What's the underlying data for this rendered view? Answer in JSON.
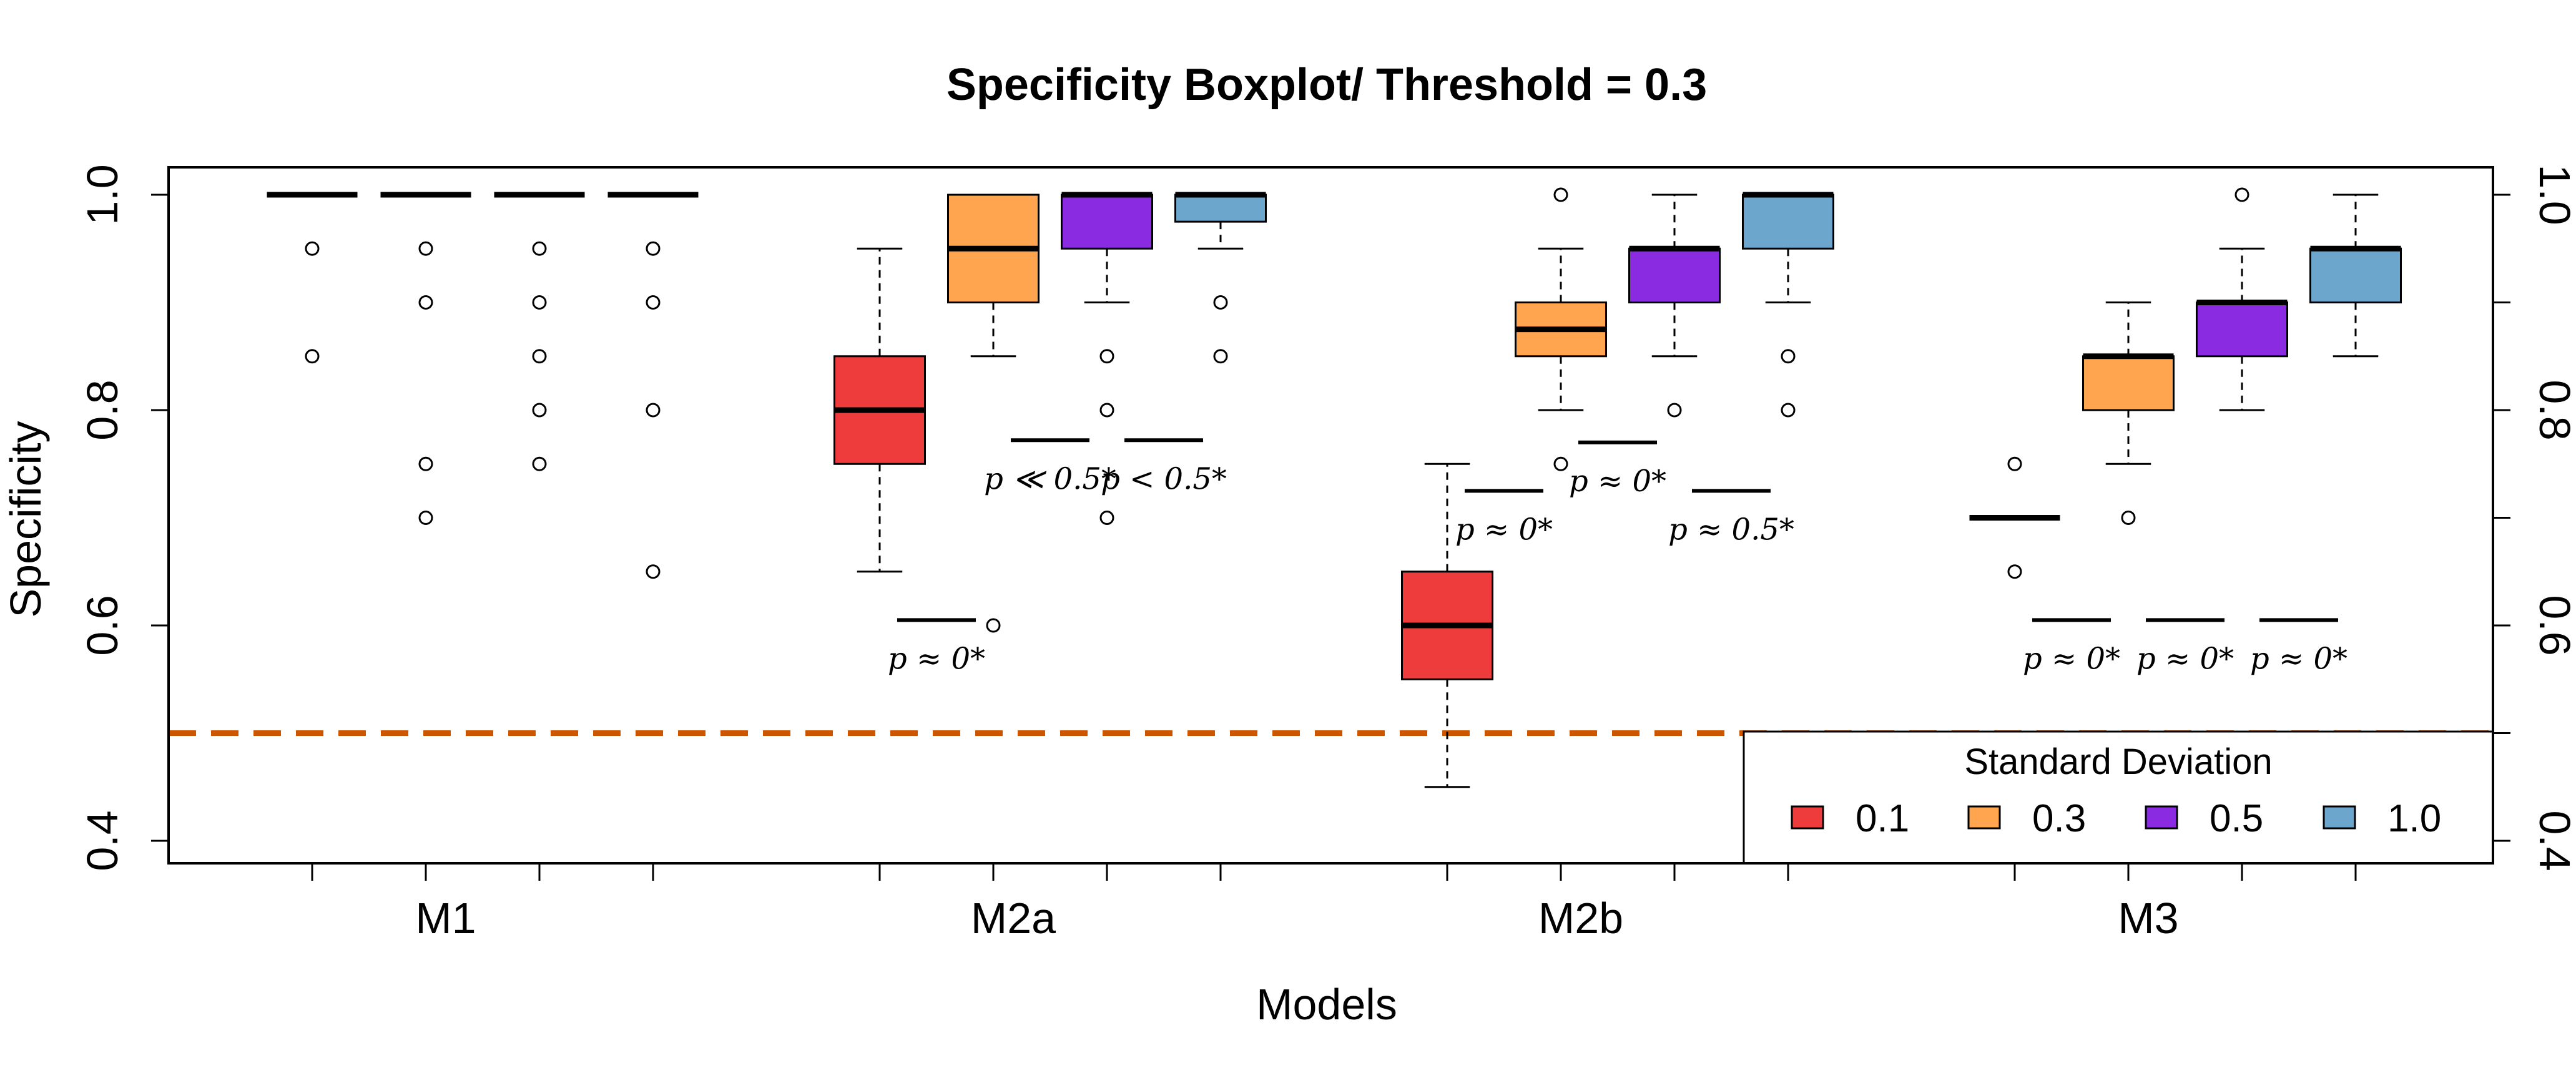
{
  "chart_data": {
    "type": "boxplot",
    "title": "Specificity Boxplot/ Threshold =  0.3",
    "xlabel": "Models",
    "ylabel": "Specificity",
    "ylim": [
      0.38,
      1.025
    ],
    "yticks": [
      0.4,
      0.6,
      0.8,
      1.0
    ],
    "ytick_labels": [
      "0.4",
      "0.6",
      "0.8",
      "1.0"
    ],
    "categories": [
      "M1",
      "M2a",
      "M2b",
      "M3"
    ],
    "series_names": [
      "0.1",
      "0.3",
      "0.5",
      "1.0"
    ],
    "series_colors": [
      "#ee3b3b",
      "#ffa54f",
      "#8a2be2",
      "#6ca6cd"
    ],
    "reference_line": {
      "y": 0.5,
      "color": "#cc5500"
    },
    "boxes": [
      {
        "model": "M1",
        "series": "0.1",
        "q1": 1.0,
        "median": 1.0,
        "q3": 1.0,
        "wlo": 1.0,
        "whi": 1.0,
        "outliers": [
          0.95,
          0.85
        ]
      },
      {
        "model": "M1",
        "series": "0.3",
        "q1": 1.0,
        "median": 1.0,
        "q3": 1.0,
        "wlo": 1.0,
        "whi": 1.0,
        "outliers": [
          0.95,
          0.9,
          0.75,
          0.7
        ]
      },
      {
        "model": "M1",
        "series": "0.5",
        "q1": 1.0,
        "median": 1.0,
        "q3": 1.0,
        "wlo": 1.0,
        "whi": 1.0,
        "outliers": [
          0.95,
          0.9,
          0.85,
          0.8,
          0.75
        ]
      },
      {
        "model": "M1",
        "series": "1.0",
        "q1": 1.0,
        "median": 1.0,
        "q3": 1.0,
        "wlo": 1.0,
        "whi": 1.0,
        "outliers": [
          0.95,
          0.9,
          0.8,
          0.65
        ]
      },
      {
        "model": "M2a",
        "series": "0.1",
        "q1": 0.75,
        "median": 0.8,
        "q3": 0.85,
        "wlo": 0.65,
        "whi": 0.95,
        "outliers": []
      },
      {
        "model": "M2a",
        "series": "0.3",
        "q1": 0.9,
        "median": 0.95,
        "q3": 1.0,
        "wlo": 0.85,
        "whi": 1.0,
        "outliers": [
          0.6
        ]
      },
      {
        "model": "M2a",
        "series": "0.5",
        "q1": 0.95,
        "median": 1.0,
        "q3": 1.0,
        "wlo": 0.9,
        "whi": 1.0,
        "outliers": [
          0.85,
          0.8,
          0.7
        ]
      },
      {
        "model": "M2a",
        "series": "1.0",
        "q1": 0.975,
        "median": 1.0,
        "q3": 1.0,
        "wlo": 0.95,
        "whi": 1.0,
        "outliers": [
          0.9,
          0.85
        ]
      },
      {
        "model": "M2b",
        "series": "0.1",
        "q1": 0.55,
        "median": 0.6,
        "q3": 0.65,
        "wlo": 0.45,
        "whi": 0.75,
        "outliers": []
      },
      {
        "model": "M2b",
        "series": "0.3",
        "q1": 0.85,
        "median": 0.875,
        "q3": 0.9,
        "wlo": 0.8,
        "whi": 0.95,
        "outliers": [
          1.0,
          0.75
        ]
      },
      {
        "model": "M2b",
        "series": "0.5",
        "q1": 0.9,
        "median": 0.95,
        "q3": 0.95,
        "wlo": 0.85,
        "whi": 1.0,
        "outliers": [
          0.8
        ]
      },
      {
        "model": "M2b",
        "series": "1.0",
        "q1": 0.95,
        "median": 1.0,
        "q3": 1.0,
        "wlo": 0.9,
        "whi": 1.0,
        "outliers": [
          0.85,
          0.8
        ]
      },
      {
        "model": "M3",
        "series": "0.1",
        "q1": 0.7,
        "median": 0.7,
        "q3": 0.7,
        "wlo": 0.7,
        "whi": 0.7,
        "outliers": [
          0.75,
          0.65
        ]
      },
      {
        "model": "M3",
        "series": "0.3",
        "q1": 0.8,
        "median": 0.85,
        "q3": 0.85,
        "wlo": 0.75,
        "whi": 0.9,
        "outliers": [
          0.7
        ]
      },
      {
        "model": "M3",
        "series": "0.5",
        "q1": 0.85,
        "median": 0.9,
        "q3": 0.9,
        "wlo": 0.8,
        "whi": 0.95,
        "outliers": [
          1.0
        ]
      },
      {
        "model": "M3",
        "series": "1.0",
        "q1": 0.9,
        "median": 0.95,
        "q3": 0.95,
        "wlo": 0.85,
        "whi": 1.0,
        "outliers": []
      }
    ],
    "annotations": [
      {
        "text": "p ≈ 0*",
        "model": "M2a",
        "between": [
          0,
          1
        ],
        "y": 0.605
      },
      {
        "text": "p ≪ 0.5*",
        "model": "M2a",
        "between": [
          1,
          2
        ],
        "y": 0.772
      },
      {
        "text": "p < 0.5*",
        "model": "M2a",
        "between": [
          2,
          3
        ],
        "y": 0.772
      },
      {
        "text": "p ≈ 0*",
        "model": "M2b",
        "between": [
          0,
          1
        ],
        "y": 0.725
      },
      {
        "text": "p ≈ 0*",
        "model": "M2b",
        "between": [
          1,
          2
        ],
        "y": 0.77
      },
      {
        "text": "p ≈ 0.5*",
        "model": "M2b",
        "between": [
          2,
          3
        ],
        "y": 0.725
      },
      {
        "text": "p ≈ 0*",
        "model": "M3",
        "between": [
          0,
          1
        ],
        "y": 0.605
      },
      {
        "text": "p ≈ 0*",
        "model": "M3",
        "between": [
          1,
          2
        ],
        "y": 0.605
      },
      {
        "text": "p ≈ 0*",
        "model": "M3",
        "between": [
          2,
          3
        ],
        "y": 0.605
      }
    ],
    "legend": {
      "title": "Standard Deviation",
      "position": "bottom-right"
    }
  }
}
